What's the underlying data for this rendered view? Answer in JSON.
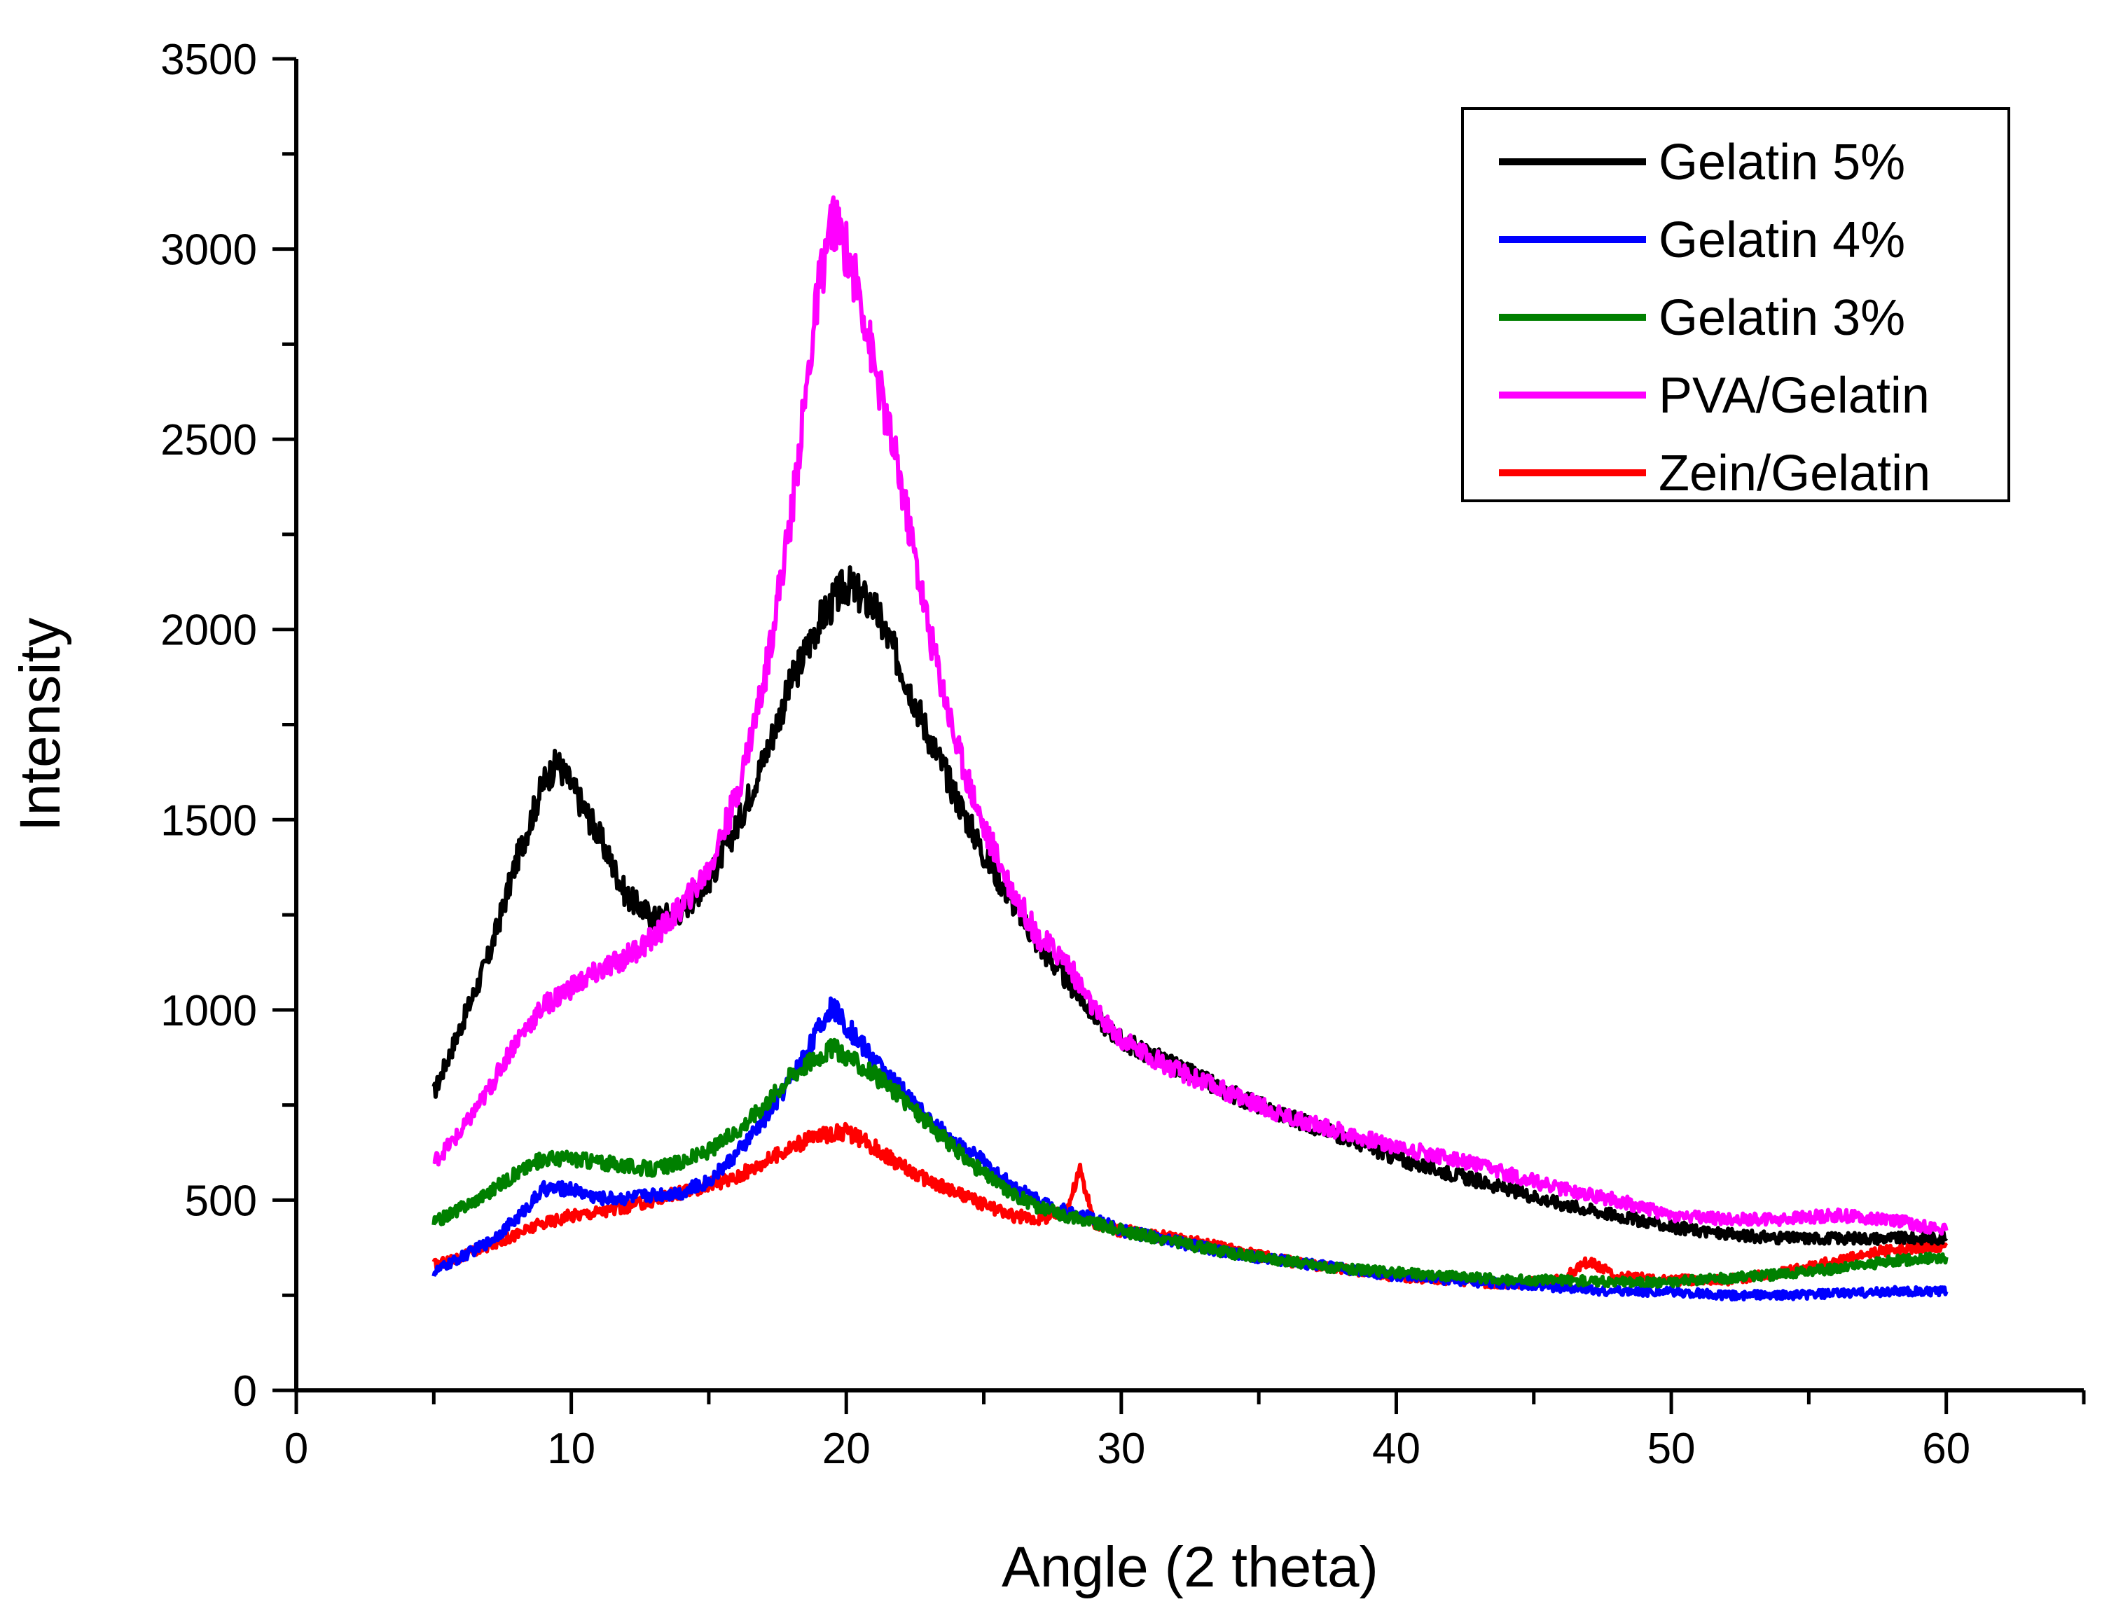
{
  "chart_data": {
    "type": "line",
    "title": "",
    "xlabel": "Angle (2 theta)",
    "ylabel": "Intensity",
    "xlim": [
      0,
      65
    ],
    "ylim": [
      0,
      3500
    ],
    "xticks": [
      0,
      10,
      20,
      30,
      40,
      50,
      60
    ],
    "yticks": [
      0,
      500,
      1000,
      1500,
      2000,
      2500,
      3000,
      3500
    ],
    "grid": false,
    "legend_position": "top-right",
    "series": [
      {
        "name": "Gelatin 5%",
        "color": "#000000",
        "x": [
          5,
          6,
          7,
          8,
          9,
          9.5,
          10,
          11,
          12,
          13,
          14,
          15,
          16,
          17,
          18,
          19,
          20,
          21,
          22,
          23,
          24,
          25,
          26,
          27,
          28,
          29,
          30,
          32,
          34,
          36,
          38,
          40,
          42,
          44,
          46,
          48,
          50,
          52,
          54,
          56,
          58,
          60
        ],
        "y": [
          780,
          960,
          1140,
          1390,
          1600,
          1650,
          1590,
          1460,
          1300,
          1240,
          1260,
          1340,
          1480,
          1660,
          1860,
          2020,
          2120,
          2060,
          1900,
          1720,
          1560,
          1410,
          1290,
          1170,
          1080,
          990,
          920,
          850,
          780,
          720,
          670,
          610,
          570,
          530,
          490,
          460,
          430,
          410,
          400,
          400,
          400,
          400
        ]
      },
      {
        "name": "Gelatin 4%",
        "color": "#0000ff",
        "x": [
          5,
          6,
          7,
          8,
          9,
          10,
          11,
          12,
          13,
          14,
          15,
          16,
          17,
          18,
          19,
          19.5,
          20,
          21,
          22,
          23,
          24,
          25,
          26,
          27,
          28,
          29,
          30,
          32,
          34,
          36,
          38,
          40,
          42,
          44,
          46,
          48,
          50,
          52,
          54,
          56,
          58,
          60
        ],
        "y": [
          310,
          350,
          390,
          450,
          530,
          530,
          505,
          505,
          515,
          520,
          550,
          620,
          710,
          820,
          950,
          1010,
          960,
          870,
          790,
          710,
          650,
          600,
          540,
          500,
          470,
          450,
          420,
          390,
          360,
          340,
          320,
          300,
          290,
          280,
          270,
          260,
          260,
          250,
          250,
          255,
          260,
          260
        ]
      },
      {
        "name": "Gelatin 3%",
        "color": "#008000",
        "x": [
          5,
          6,
          7,
          8,
          9,
          10,
          11,
          12,
          13,
          14,
          15,
          16,
          17,
          18,
          19,
          19.5,
          20,
          21,
          22,
          23,
          24,
          25,
          26,
          27,
          28,
          29,
          30,
          32,
          34,
          36,
          38,
          40,
          42,
          44,
          46,
          48,
          50,
          52,
          54,
          56,
          58,
          60
        ],
        "y": [
          440,
          480,
          520,
          570,
          610,
          610,
          600,
          590,
          580,
          600,
          630,
          680,
          750,
          830,
          880,
          900,
          880,
          830,
          770,
          700,
          630,
          570,
          520,
          480,
          460,
          440,
          420,
          390,
          360,
          340,
          320,
          310,
          300,
          290,
          290,
          285,
          285,
          295,
          305,
          320,
          340,
          350
        ]
      },
      {
        "name": "PVA/Gelatin",
        "color": "#ff00ff",
        "x": [
          5,
          6,
          7,
          8,
          9,
          10,
          11,
          12,
          13,
          14,
          15,
          16,
          17,
          18,
          18.5,
          19,
          19.5,
          20,
          20.5,
          21,
          22,
          23,
          24,
          25,
          26,
          27,
          28,
          29,
          30,
          32,
          34,
          36,
          38,
          40,
          42,
          44,
          46,
          48,
          50,
          52,
          54,
          56,
          58,
          60
        ],
        "y": [
          600,
          680,
          790,
          920,
          1010,
          1060,
          1100,
          1140,
          1190,
          1270,
          1370,
          1560,
          1860,
          2300,
          2600,
          2900,
          3080,
          3000,
          2880,
          2700,
          2380,
          2000,
          1700,
          1480,
          1320,
          1190,
          1130,
          1000,
          920,
          840,
          780,
          720,
          680,
          640,
          610,
          570,
          530,
          500,
          460,
          450,
          450,
          460,
          450,
          420
        ]
      },
      {
        "name": "Zein/Gelatin",
        "color": "#ff0000",
        "x": [
          5,
          6,
          7,
          8,
          9,
          10,
          11,
          12,
          13,
          14,
          15,
          16,
          17,
          18,
          19,
          20,
          21,
          22,
          23,
          24,
          25,
          26,
          27,
          28,
          28.5,
          29,
          30,
          32,
          34,
          36,
          38,
          40,
          42,
          44,
          46,
          47,
          48,
          50,
          52,
          54,
          56,
          58,
          60
        ],
        "y": [
          330,
          350,
          380,
          410,
          440,
          460,
          470,
          480,
          500,
          520,
          540,
          560,
          600,
          640,
          670,
          680,
          640,
          590,
          550,
          520,
          490,
          460,
          450,
          470,
          580,
          440,
          420,
          400,
          370,
          340,
          320,
          300,
          290,
          280,
          290,
          340,
          300,
          290,
          290,
          310,
          340,
          370,
          380
        ]
      }
    ]
  }
}
